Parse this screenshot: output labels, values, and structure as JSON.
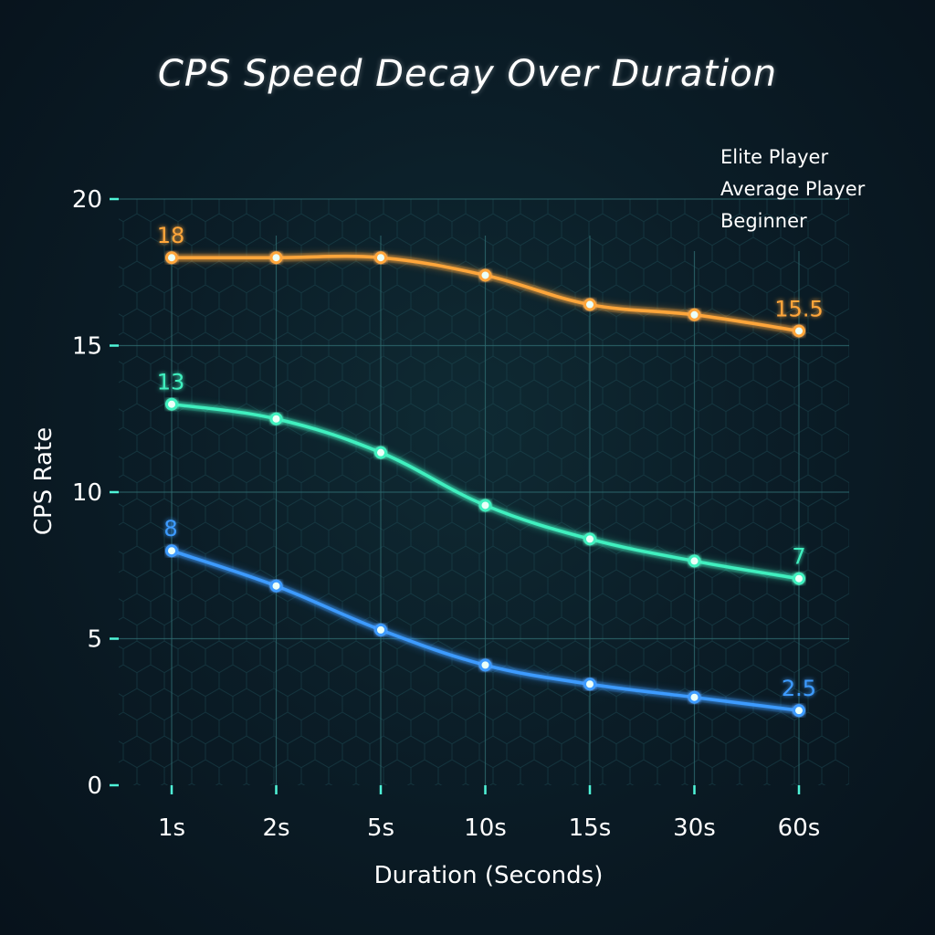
{
  "chart_data": {
    "type": "line",
    "title": "CPS Speed Decay Over Duration",
    "xlabel": "Duration (Seconds)",
    "ylabel": "CPS Rate",
    "categories": [
      "1s",
      "2s",
      "5s",
      "10s",
      "15s",
      "30s",
      "60s"
    ],
    "ylim": [
      0,
      20
    ],
    "yticks": [
      "0",
      "5",
      "10",
      "15",
      "20"
    ],
    "grid": true,
    "legend": "top-right",
    "series": [
      {
        "name": "Elite Player",
        "color": "#ffa63a",
        "values": [
          18,
          18,
          18,
          17.4,
          16.4,
          16.05,
          15.5
        ],
        "labels": [
          {
            "index": 0,
            "text": "18"
          },
          {
            "index": 6,
            "text": "15.5"
          }
        ]
      },
      {
        "name": "Average Player",
        "color": "#3ff0bf",
        "values": [
          13,
          12.5,
          11.35,
          9.55,
          8.4,
          7.65,
          7.05
        ],
        "labels": [
          {
            "index": 0,
            "text": "13"
          },
          {
            "index": 6,
            "text": "7"
          }
        ]
      },
      {
        "name": "Beginner",
        "color": "#3d9bff",
        "values": [
          8,
          6.8,
          5.3,
          4.1,
          3.45,
          3.0,
          2.55
        ],
        "labels": [
          {
            "index": 0,
            "text": "8"
          },
          {
            "index": 6,
            "text": "2.5"
          }
        ]
      }
    ]
  }
}
